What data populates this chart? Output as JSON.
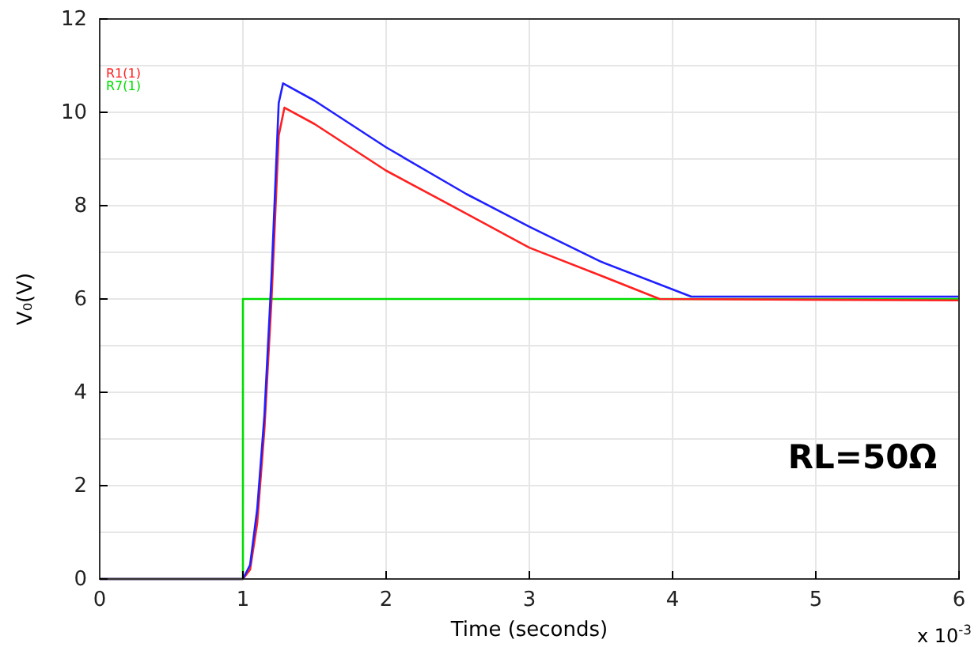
{
  "chart_data": {
    "type": "line",
    "xlabel": "Time (seconds)",
    "ylabel": "V₀(V)",
    "annotations": [
      "RL=50Ω",
      "x 10$^{-3}$"
    ],
    "series": [
      {
        "name": "R7(1)",
        "color": "#00dd00",
        "x": [
          0,
          1,
          1,
          6
        ],
        "values": [
          0,
          0,
          6,
          6
        ]
      },
      {
        "name": "R1(1)",
        "color": "#ff2020",
        "x": [
          0,
          1,
          1.05,
          1.1,
          1.15,
          1.2,
          1.25,
          1.29,
          1.5,
          2,
          2.56,
          3,
          3.5,
          3.91,
          6
        ],
        "values": [
          0,
          0,
          0.2,
          1.2,
          3.2,
          6,
          9.5,
          10.1,
          9.75,
          8.75,
          7.83,
          7.1,
          6.5,
          6,
          5.97
        ]
      },
      {
        "color": "#2020ff",
        "x": [
          0,
          1,
          1.05,
          1.1,
          1.15,
          1.2,
          1.25,
          1.28,
          1.5,
          2,
          2.56,
          3,
          3.5,
          4.13,
          6
        ],
        "values": [
          0,
          0,
          0.3,
          1.5,
          3.5,
          6.5,
          10.2,
          10.62,
          10.25,
          9.25,
          8.25,
          7.55,
          6.8,
          6.05,
          6.05
        ]
      }
    ],
    "xlim": [
      0,
      6
    ],
    "xticks": [
      0,
      1,
      2,
      3,
      4,
      5,
      6
    ],
    "ylim": [
      0,
      12
    ],
    "yticks": [
      0,
      2,
      4,
      6,
      8,
      10,
      12
    ],
    "grid": true,
    "legend": "top left"
  }
}
